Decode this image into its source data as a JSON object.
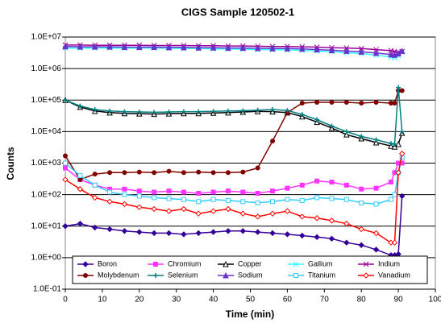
{
  "chart_data": {
    "type": "line",
    "title": "CIGS Sample 120502-1",
    "x_label": "Time (min)",
    "y_label": "Counts",
    "log_y": true,
    "grid": true,
    "legend": "bottom",
    "x": [
      0,
      4,
      8,
      12,
      16,
      20,
      24,
      28,
      32,
      36,
      40,
      44,
      48,
      52,
      56,
      60,
      64,
      68,
      72,
      76,
      80,
      84,
      88,
      89,
      90,
      91
    ],
    "xlim": [
      0,
      100
    ],
    "xticks": [
      0,
      10,
      20,
      30,
      40,
      50,
      60,
      70,
      80,
      90,
      100
    ],
    "ylim": [
      0.1,
      10000000
    ],
    "yticks": [
      {
        "value": 0.1,
        "label": "1.0E-01"
      },
      {
        "value": 1,
        "label": "1.0E+00"
      },
      {
        "value": 10,
        "label": "1.0E+01"
      },
      {
        "value": 100,
        "label": "1.0E+02"
      },
      {
        "value": 1000,
        "label": "1.0E+03"
      },
      {
        "value": 10000,
        "label": "1.0E+04"
      },
      {
        "value": 100000,
        "label": "1.0E+05"
      },
      {
        "value": 1000000,
        "label": "1.0E+06"
      },
      {
        "value": 10000000,
        "label": "1.0E+07"
      }
    ],
    "series": [
      {
        "name": "Boron",
        "color": "#330099",
        "marker": "diamond",
        "values": [
          10,
          12,
          9,
          8,
          7,
          6.5,
          6,
          6,
          5.5,
          6,
          6.5,
          7,
          7,
          6.5,
          6,
          5.5,
          5,
          4.5,
          4,
          3,
          2.5,
          1.8,
          1.2,
          1.2,
          1.3,
          90
        ]
      },
      {
        "name": "Chromium",
        "color": "#ff33ff",
        "marker": "square",
        "values": [
          700,
          300,
          200,
          150,
          150,
          130,
          120,
          130,
          120,
          110,
          120,
          130,
          120,
          110,
          130,
          160,
          200,
          270,
          250,
          200,
          150,
          160,
          250,
          500,
          1000,
          1000
        ]
      },
      {
        "name": "Copper",
        "color": "#000000",
        "marker": "triangle-open",
        "values": [
          100000,
          60000,
          45000,
          40000,
          38000,
          37000,
          36000,
          37000,
          38000,
          38000,
          39000,
          40000,
          42000,
          44000,
          43000,
          40000,
          30000,
          20000,
          13000,
          8000,
          6000,
          4500,
          3500,
          3300,
          4000,
          9000
        ]
      },
      {
        "name": "Gallium",
        "color": "#33ffff",
        "marker": "x",
        "values": [
          4500000,
          4400000,
          4500000,
          4500000,
          4400000,
          4500000,
          4400000,
          4400000,
          4300000,
          4300000,
          4200000,
          4200000,
          4100000,
          4000000,
          4000000,
          3900000,
          3800000,
          3600000,
          3400000,
          3200000,
          3000000,
          2700000,
          2300000,
          2200000,
          2500000,
          3300000
        ]
      },
      {
        "name": "Indium",
        "color": "#990099",
        "marker": "x",
        "values": [
          5600000,
          5600000,
          5500000,
          5500000,
          5500000,
          5500000,
          5400000,
          5400000,
          5400000,
          5300000,
          5300000,
          5200000,
          5200000,
          5100000,
          5000000,
          5000000,
          4900000,
          4800000,
          4600000,
          4500000,
          4300000,
          4000000,
          3700000,
          3500000,
          3300000,
          3500000
        ]
      },
      {
        "name": "Molybdenum",
        "color": "#800000",
        "marker": "circle",
        "values": [
          1700,
          300,
          450,
          500,
          500,
          520,
          500,
          550,
          500,
          520,
          500,
          500,
          520,
          700,
          5000,
          40000,
          80000,
          85000,
          85000,
          85000,
          80000,
          85000,
          80000,
          80000,
          200000,
          200000
        ]
      },
      {
        "name": "Selenium",
        "color": "#008080",
        "marker": "plus",
        "values": [
          100000,
          65000,
          50000,
          45000,
          43000,
          42000,
          41000,
          42000,
          43000,
          43000,
          44000,
          45000,
          46000,
          48000,
          50000,
          47000,
          35000,
          24000,
          15000,
          10000,
          7000,
          5500,
          4200,
          4000,
          250000,
          10000
        ]
      },
      {
        "name": "Sodium",
        "color": "#6633cc",
        "marker": "triangle",
        "values": [
          5000000,
          4900000,
          4900000,
          4900000,
          4800000,
          4800000,
          4800000,
          4700000,
          4700000,
          4600000,
          4600000,
          4500000,
          4500000,
          4400000,
          4300000,
          4300000,
          4200000,
          4000000,
          3800000,
          3600000,
          3400000,
          3100000,
          2800000,
          2700000,
          3000000,
          3600000
        ]
      },
      {
        "name": "Titanium",
        "color": "#33ccff",
        "marker": "square-open",
        "values": [
          1000,
          400,
          200,
          120,
          100,
          90,
          80,
          75,
          70,
          60,
          70,
          65,
          60,
          55,
          60,
          70,
          65,
          80,
          75,
          70,
          55,
          50,
          70,
          100,
          500,
          1500
        ]
      },
      {
        "name": "Vanadium",
        "color": "#ff0000",
        "marker": "diamond-open",
        "values": [
          300,
          150,
          80,
          60,
          50,
          40,
          35,
          30,
          35,
          25,
          30,
          35,
          25,
          20,
          25,
          30,
          20,
          18,
          15,
          12,
          8,
          6,
          3,
          3,
          500,
          2000
        ]
      }
    ]
  }
}
